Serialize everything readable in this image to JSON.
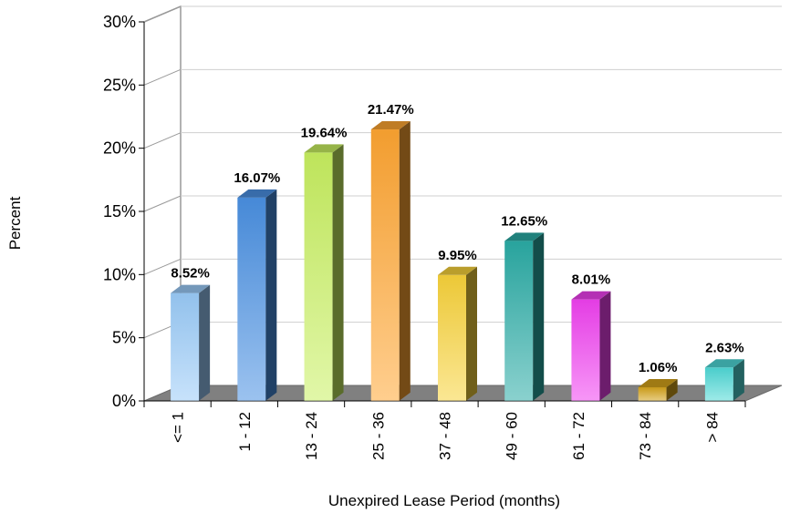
{
  "chart_data": {
    "type": "bar",
    "title": "",
    "xlabel": "Unexpired Lease Period (months)",
    "ylabel": "Percent",
    "ylim": [
      0,
      30
    ],
    "ytick_labels": [
      "0%",
      "5%",
      "10%",
      "15%",
      "20%",
      "25%",
      "30%"
    ],
    "grid": true,
    "categories": [
      "<= 1",
      "1 - 12",
      "13 - 24",
      "25 - 36",
      "37 - 48",
      "49 - 60",
      "61 - 72",
      "73 - 84",
      "> 84"
    ],
    "values": [
      8.52,
      16.07,
      19.64,
      21.47,
      9.95,
      12.65,
      8.01,
      1.06,
      2.63
    ],
    "data_labels": [
      "8.52%",
      "16.07%",
      "19.64%",
      "21.47%",
      "9.95%",
      "12.65%",
      "8.01%",
      "1.06%",
      "2.63%"
    ],
    "colors": [
      "#9ACBF8",
      "#4A90E2",
      "#C8F060",
      "#FFA531",
      "#F8D33A",
      "#2AACA5",
      "#F040F0",
      "#D4A21A",
      "#4ED8D6"
    ],
    "floor_color": "#808080",
    "wall_line_color": "#999999"
  }
}
